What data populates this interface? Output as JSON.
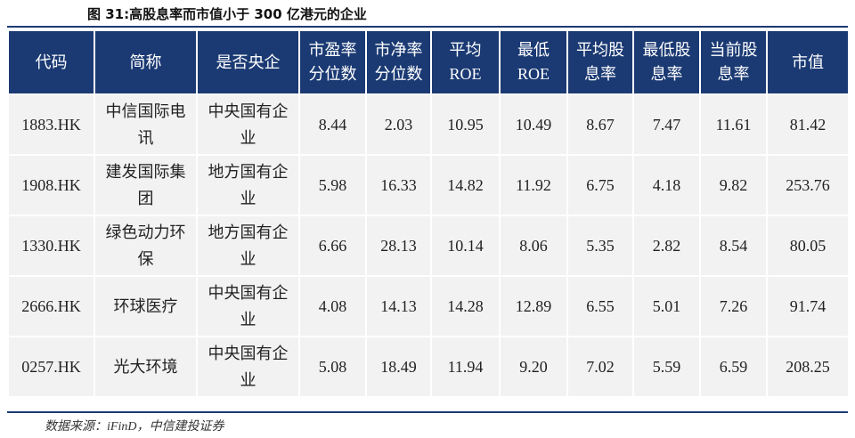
{
  "header": {
    "title": "图 31:高股息率而市值小于 300 亿港元的企业"
  },
  "table": {
    "columns": [
      "代码",
      "简称",
      "是否央企",
      "市盈率\n分位数",
      "市净率\n分位数",
      "平均\nROE",
      "最低\nROE",
      "平均股\n息率",
      "最低股\n息率",
      "当前股\n息率",
      "市值"
    ],
    "rows": [
      [
        "1883.HK",
        "中信国际电讯",
        "中央国有企业",
        "8.44",
        "2.03",
        "10.95",
        "10.49",
        "8.67",
        "7.47",
        "11.61",
        "81.42"
      ],
      [
        "1908.HK",
        "建发国际集团",
        "地方国有企业",
        "5.98",
        "16.33",
        "14.82",
        "11.92",
        "6.75",
        "4.18",
        "9.82",
        "253.76"
      ],
      [
        "1330.HK",
        "绿色动力环保",
        "地方国有企业",
        "6.66",
        "28.13",
        "10.14",
        "8.06",
        "5.35",
        "2.82",
        "8.54",
        "80.05"
      ],
      [
        "2666.HK",
        "环球医疗",
        "中央国有企业",
        "4.08",
        "14.13",
        "14.28",
        "12.89",
        "6.55",
        "5.01",
        "7.26",
        "91.74"
      ],
      [
        "0257.HK",
        "光大环境",
        "中央国有企业",
        "5.08",
        "18.49",
        "11.94",
        "9.20",
        "7.02",
        "5.59",
        "6.59",
        "208.25"
      ]
    ]
  },
  "source": "数据来源：iFinD，中信建投证券"
}
